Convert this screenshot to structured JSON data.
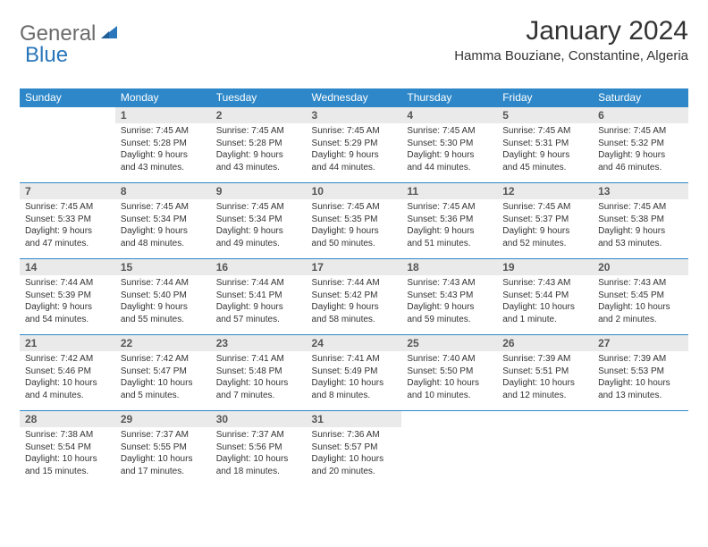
{
  "logo": {
    "general": "General",
    "blue": "Blue"
  },
  "title": "January 2024",
  "location": "Hamma Bouziane, Constantine, Algeria",
  "colors": {
    "header_bg": "#2d87c8",
    "header_text": "#ffffff",
    "daynum_bg": "#eaeaea",
    "daynum_text": "#555555",
    "body_text": "#333333",
    "logo_gray": "#6b6b6b",
    "logo_blue": "#2976bb",
    "row_border": "#2d87c8",
    "page_bg": "#ffffff"
  },
  "fonts": {
    "title_size": 30,
    "location_size": 15,
    "dayhead_size": 12,
    "daynum_size": 12,
    "detail_size": 10
  },
  "day_headers": [
    "Sunday",
    "Monday",
    "Tuesday",
    "Wednesday",
    "Thursday",
    "Friday",
    "Saturday"
  ],
  "weeks": [
    {
      "nums": [
        "",
        "1",
        "2",
        "3",
        "4",
        "5",
        "6"
      ],
      "details": [
        {
          "sunrise": "",
          "sunset": "",
          "daylight1": "",
          "daylight2": ""
        },
        {
          "sunrise": "Sunrise: 7:45 AM",
          "sunset": "Sunset: 5:28 PM",
          "daylight1": "Daylight: 9 hours",
          "daylight2": "and 43 minutes."
        },
        {
          "sunrise": "Sunrise: 7:45 AM",
          "sunset": "Sunset: 5:28 PM",
          "daylight1": "Daylight: 9 hours",
          "daylight2": "and 43 minutes."
        },
        {
          "sunrise": "Sunrise: 7:45 AM",
          "sunset": "Sunset: 5:29 PM",
          "daylight1": "Daylight: 9 hours",
          "daylight2": "and 44 minutes."
        },
        {
          "sunrise": "Sunrise: 7:45 AM",
          "sunset": "Sunset: 5:30 PM",
          "daylight1": "Daylight: 9 hours",
          "daylight2": "and 44 minutes."
        },
        {
          "sunrise": "Sunrise: 7:45 AM",
          "sunset": "Sunset: 5:31 PM",
          "daylight1": "Daylight: 9 hours",
          "daylight2": "and 45 minutes."
        },
        {
          "sunrise": "Sunrise: 7:45 AM",
          "sunset": "Sunset: 5:32 PM",
          "daylight1": "Daylight: 9 hours",
          "daylight2": "and 46 minutes."
        }
      ]
    },
    {
      "nums": [
        "7",
        "8",
        "9",
        "10",
        "11",
        "12",
        "13"
      ],
      "details": [
        {
          "sunrise": "Sunrise: 7:45 AM",
          "sunset": "Sunset: 5:33 PM",
          "daylight1": "Daylight: 9 hours",
          "daylight2": "and 47 minutes."
        },
        {
          "sunrise": "Sunrise: 7:45 AM",
          "sunset": "Sunset: 5:34 PM",
          "daylight1": "Daylight: 9 hours",
          "daylight2": "and 48 minutes."
        },
        {
          "sunrise": "Sunrise: 7:45 AM",
          "sunset": "Sunset: 5:34 PM",
          "daylight1": "Daylight: 9 hours",
          "daylight2": "and 49 minutes."
        },
        {
          "sunrise": "Sunrise: 7:45 AM",
          "sunset": "Sunset: 5:35 PM",
          "daylight1": "Daylight: 9 hours",
          "daylight2": "and 50 minutes."
        },
        {
          "sunrise": "Sunrise: 7:45 AM",
          "sunset": "Sunset: 5:36 PM",
          "daylight1": "Daylight: 9 hours",
          "daylight2": "and 51 minutes."
        },
        {
          "sunrise": "Sunrise: 7:45 AM",
          "sunset": "Sunset: 5:37 PM",
          "daylight1": "Daylight: 9 hours",
          "daylight2": "and 52 minutes."
        },
        {
          "sunrise": "Sunrise: 7:45 AM",
          "sunset": "Sunset: 5:38 PM",
          "daylight1": "Daylight: 9 hours",
          "daylight2": "and 53 minutes."
        }
      ]
    },
    {
      "nums": [
        "14",
        "15",
        "16",
        "17",
        "18",
        "19",
        "20"
      ],
      "details": [
        {
          "sunrise": "Sunrise: 7:44 AM",
          "sunset": "Sunset: 5:39 PM",
          "daylight1": "Daylight: 9 hours",
          "daylight2": "and 54 minutes."
        },
        {
          "sunrise": "Sunrise: 7:44 AM",
          "sunset": "Sunset: 5:40 PM",
          "daylight1": "Daylight: 9 hours",
          "daylight2": "and 55 minutes."
        },
        {
          "sunrise": "Sunrise: 7:44 AM",
          "sunset": "Sunset: 5:41 PM",
          "daylight1": "Daylight: 9 hours",
          "daylight2": "and 57 minutes."
        },
        {
          "sunrise": "Sunrise: 7:44 AM",
          "sunset": "Sunset: 5:42 PM",
          "daylight1": "Daylight: 9 hours",
          "daylight2": "and 58 minutes."
        },
        {
          "sunrise": "Sunrise: 7:43 AM",
          "sunset": "Sunset: 5:43 PM",
          "daylight1": "Daylight: 9 hours",
          "daylight2": "and 59 minutes."
        },
        {
          "sunrise": "Sunrise: 7:43 AM",
          "sunset": "Sunset: 5:44 PM",
          "daylight1": "Daylight: 10 hours",
          "daylight2": "and 1 minute."
        },
        {
          "sunrise": "Sunrise: 7:43 AM",
          "sunset": "Sunset: 5:45 PM",
          "daylight1": "Daylight: 10 hours",
          "daylight2": "and 2 minutes."
        }
      ]
    },
    {
      "nums": [
        "21",
        "22",
        "23",
        "24",
        "25",
        "26",
        "27"
      ],
      "details": [
        {
          "sunrise": "Sunrise: 7:42 AM",
          "sunset": "Sunset: 5:46 PM",
          "daylight1": "Daylight: 10 hours",
          "daylight2": "and 4 minutes."
        },
        {
          "sunrise": "Sunrise: 7:42 AM",
          "sunset": "Sunset: 5:47 PM",
          "daylight1": "Daylight: 10 hours",
          "daylight2": "and 5 minutes."
        },
        {
          "sunrise": "Sunrise: 7:41 AM",
          "sunset": "Sunset: 5:48 PM",
          "daylight1": "Daylight: 10 hours",
          "daylight2": "and 7 minutes."
        },
        {
          "sunrise": "Sunrise: 7:41 AM",
          "sunset": "Sunset: 5:49 PM",
          "daylight1": "Daylight: 10 hours",
          "daylight2": "and 8 minutes."
        },
        {
          "sunrise": "Sunrise: 7:40 AM",
          "sunset": "Sunset: 5:50 PM",
          "daylight1": "Daylight: 10 hours",
          "daylight2": "and 10 minutes."
        },
        {
          "sunrise": "Sunrise: 7:39 AM",
          "sunset": "Sunset: 5:51 PM",
          "daylight1": "Daylight: 10 hours",
          "daylight2": "and 12 minutes."
        },
        {
          "sunrise": "Sunrise: 7:39 AM",
          "sunset": "Sunset: 5:53 PM",
          "daylight1": "Daylight: 10 hours",
          "daylight2": "and 13 minutes."
        }
      ]
    },
    {
      "nums": [
        "28",
        "29",
        "30",
        "31",
        "",
        "",
        ""
      ],
      "details": [
        {
          "sunrise": "Sunrise: 7:38 AM",
          "sunset": "Sunset: 5:54 PM",
          "daylight1": "Daylight: 10 hours",
          "daylight2": "and 15 minutes."
        },
        {
          "sunrise": "Sunrise: 7:37 AM",
          "sunset": "Sunset: 5:55 PM",
          "daylight1": "Daylight: 10 hours",
          "daylight2": "and 17 minutes."
        },
        {
          "sunrise": "Sunrise: 7:37 AM",
          "sunset": "Sunset: 5:56 PM",
          "daylight1": "Daylight: 10 hours",
          "daylight2": "and 18 minutes."
        },
        {
          "sunrise": "Sunrise: 7:36 AM",
          "sunset": "Sunset: 5:57 PM",
          "daylight1": "Daylight: 10 hours",
          "daylight2": "and 20 minutes."
        },
        {
          "sunrise": "",
          "sunset": "",
          "daylight1": "",
          "daylight2": ""
        },
        {
          "sunrise": "",
          "sunset": "",
          "daylight1": "",
          "daylight2": ""
        },
        {
          "sunrise": "",
          "sunset": "",
          "daylight1": "",
          "daylight2": ""
        }
      ]
    }
  ]
}
